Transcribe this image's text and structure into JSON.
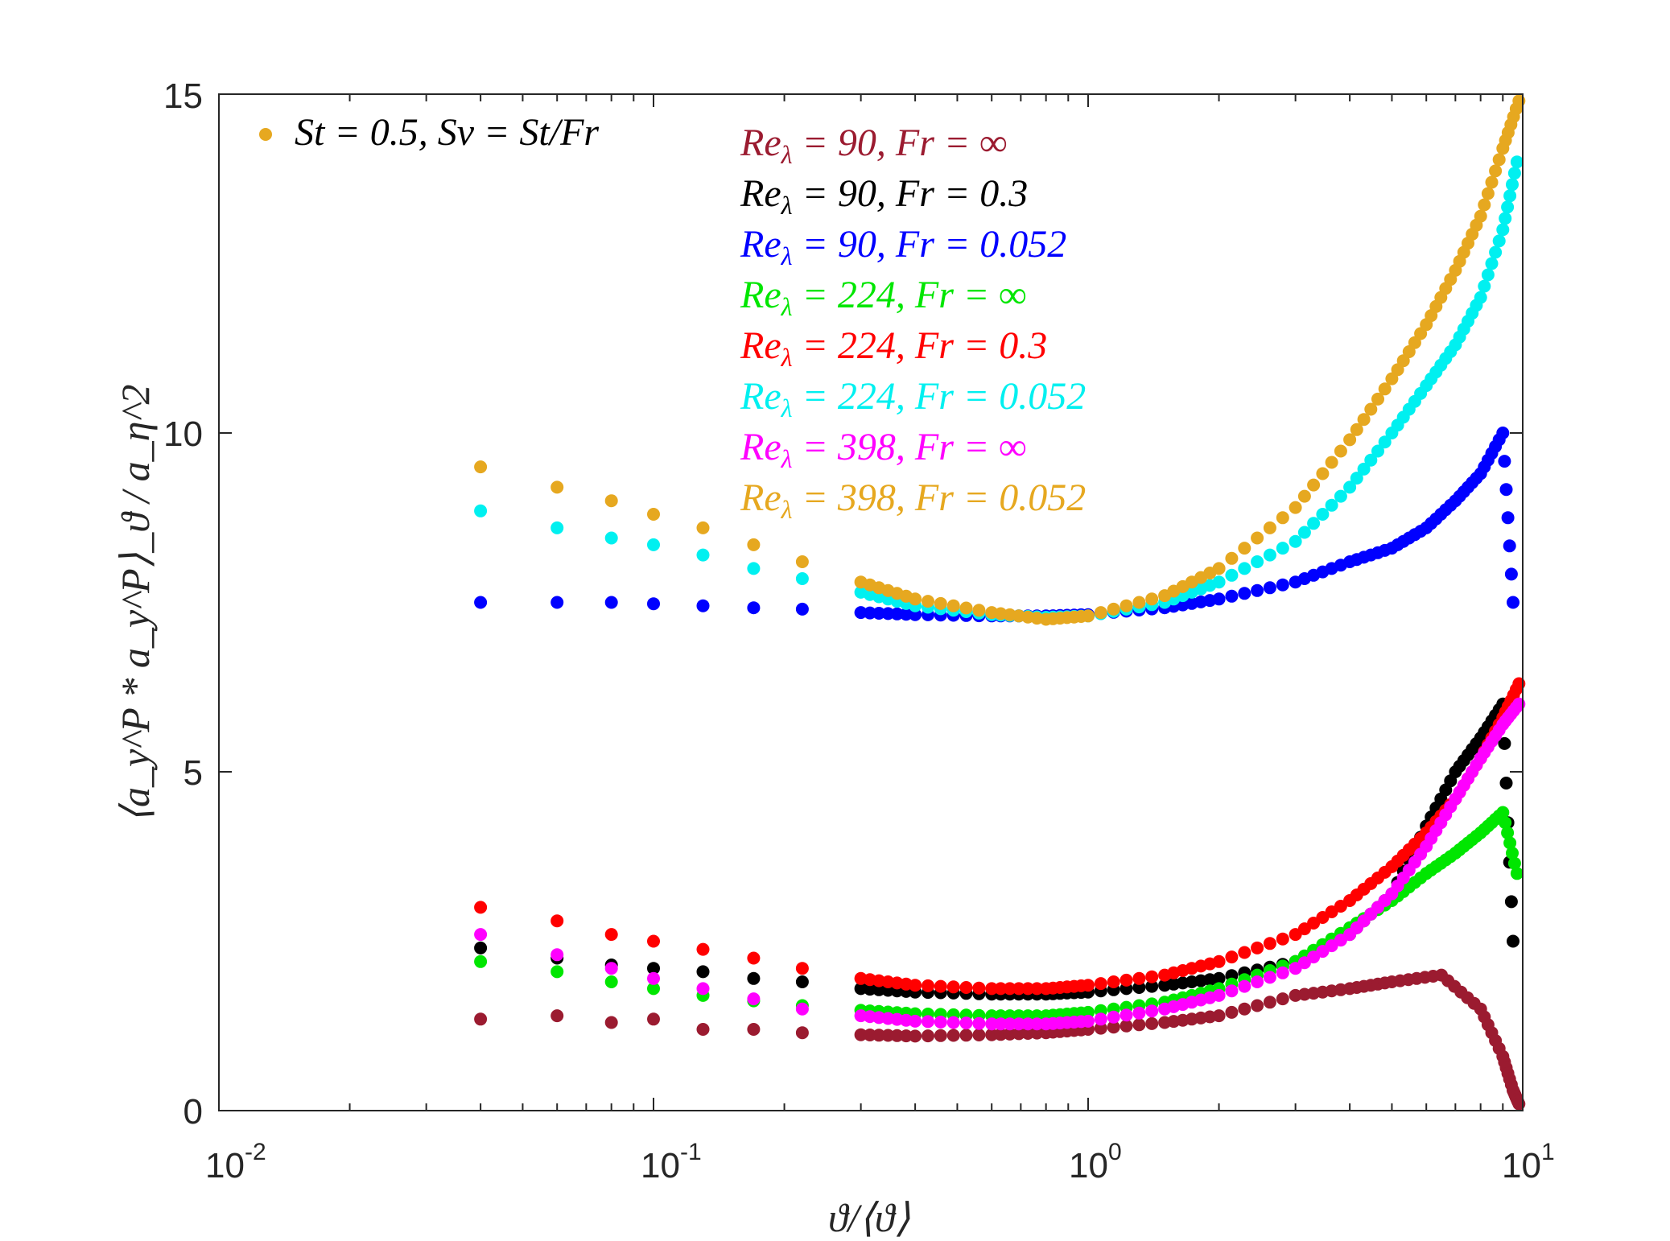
{
  "chart_data": {
    "type": "scatter",
    "xscale": "log",
    "xlim": [
      0.01,
      10
    ],
    "ylim": [
      0,
      15
    ],
    "grid": false,
    "xlabel": "ϑ/⟨ϑ⟩",
    "ylabel": "⟨a_y^P * a_y^P⟩_ϑ / a_η^2",
    "x_ticks": [
      {
        "base": "10",
        "exp": "-2"
      },
      {
        "base": "10",
        "exp": "-1"
      },
      {
        "base": "10",
        "exp": "0"
      },
      {
        "base": "10",
        "exp": "1"
      }
    ],
    "y_ticks": [
      "0",
      "5",
      "10",
      "15"
    ],
    "annotation": {
      "text": "St = 0.5, Sv = St/Fr",
      "color": "#E6A820",
      "position": "top-left"
    },
    "legend_position": "top-center",
    "series": [
      {
        "name": "Re_λ = 90, Fr = ∞",
        "label_parts": [
          "Re",
          "λ",
          " = 90, Fr = ∞"
        ],
        "color": "#9B1B30",
        "points": [
          [
            0.04,
            1.35
          ],
          [
            0.06,
            1.4
          ],
          [
            0.08,
            1.3
          ],
          [
            0.1,
            1.35
          ],
          [
            0.13,
            1.2
          ],
          [
            0.17,
            1.2
          ],
          [
            0.22,
            1.15
          ],
          [
            0.3,
            1.12
          ],
          [
            0.4,
            1.1
          ],
          [
            0.6,
            1.12
          ],
          [
            0.8,
            1.15
          ],
          [
            1.0,
            1.2
          ],
          [
            1.5,
            1.3
          ],
          [
            2.0,
            1.4
          ],
          [
            3.0,
            1.7
          ],
          [
            4.0,
            1.8
          ],
          [
            5.0,
            1.9
          ],
          [
            6.5,
            2.0
          ],
          [
            8.0,
            1.5
          ],
          [
            9.0,
            0.8
          ],
          [
            9.5,
            0.3
          ],
          [
            9.8,
            0.1
          ]
        ]
      },
      {
        "name": "Re_λ = 90, Fr = 0.3",
        "label_parts": [
          "Re",
          "λ",
          " = 90, Fr = 0.3"
        ],
        "color": "#000000",
        "points": [
          [
            0.04,
            2.4
          ],
          [
            0.06,
            2.25
          ],
          [
            0.08,
            2.15
          ],
          [
            0.1,
            2.1
          ],
          [
            0.13,
            2.05
          ],
          [
            0.17,
            1.95
          ],
          [
            0.22,
            1.9
          ],
          [
            0.3,
            1.8
          ],
          [
            0.4,
            1.75
          ],
          [
            0.6,
            1.72
          ],
          [
            0.8,
            1.72
          ],
          [
            1.0,
            1.75
          ],
          [
            1.5,
            1.85
          ],
          [
            2.0,
            1.95
          ],
          [
            3.0,
            2.2
          ],
          [
            4.0,
            2.6
          ],
          [
            5.0,
            3.2
          ],
          [
            6.0,
            4.2
          ],
          [
            7.0,
            5.0
          ],
          [
            8.0,
            5.5
          ],
          [
            9.0,
            6.0
          ],
          [
            9.5,
            2.5
          ]
        ]
      },
      {
        "name": "Re_λ = 90, Fr = 0.052",
        "label_parts": [
          "Re",
          "λ",
          " = 90, Fr = 0.052"
        ],
        "color": "#0000FF",
        "points": [
          [
            0.04,
            7.5
          ],
          [
            0.06,
            7.5
          ],
          [
            0.08,
            7.5
          ],
          [
            0.1,
            7.48
          ],
          [
            0.13,
            7.45
          ],
          [
            0.17,
            7.42
          ],
          [
            0.22,
            7.4
          ],
          [
            0.3,
            7.35
          ],
          [
            0.4,
            7.32
          ],
          [
            0.6,
            7.3
          ],
          [
            0.8,
            7.3
          ],
          [
            1.0,
            7.32
          ],
          [
            1.5,
            7.42
          ],
          [
            2.0,
            7.55
          ],
          [
            3.0,
            7.8
          ],
          [
            4.0,
            8.1
          ],
          [
            5.0,
            8.3
          ],
          [
            6.0,
            8.6
          ],
          [
            7.0,
            9.0
          ],
          [
            8.0,
            9.4
          ],
          [
            9.0,
            10.0
          ],
          [
            9.5,
            7.5
          ]
        ]
      },
      {
        "name": "Re_λ = 224, Fr = ∞",
        "label_parts": [
          "Re",
          "λ",
          " = 224, Fr = ∞"
        ],
        "color": "#00E600",
        "points": [
          [
            0.04,
            2.2
          ],
          [
            0.06,
            2.05
          ],
          [
            0.08,
            1.9
          ],
          [
            0.1,
            1.8
          ],
          [
            0.13,
            1.7
          ],
          [
            0.17,
            1.62
          ],
          [
            0.22,
            1.55
          ],
          [
            0.3,
            1.48
          ],
          [
            0.4,
            1.43
          ],
          [
            0.6,
            1.4
          ],
          [
            0.8,
            1.4
          ],
          [
            1.0,
            1.45
          ],
          [
            1.5,
            1.6
          ],
          [
            2.0,
            1.8
          ],
          [
            3.0,
            2.2
          ],
          [
            4.0,
            2.7
          ],
          [
            5.0,
            3.1
          ],
          [
            6.0,
            3.5
          ],
          [
            7.0,
            3.8
          ],
          [
            8.0,
            4.1
          ],
          [
            9.0,
            4.4
          ],
          [
            9.7,
            3.5
          ]
        ]
      },
      {
        "name": "Re_λ = 224, Fr = 0.3",
        "label_parts": [
          "Re",
          "λ",
          " = 224, Fr = 0.3"
        ],
        "color": "#FF0000",
        "points": [
          [
            0.04,
            3.0
          ],
          [
            0.06,
            2.8
          ],
          [
            0.08,
            2.6
          ],
          [
            0.1,
            2.5
          ],
          [
            0.13,
            2.38
          ],
          [
            0.17,
            2.25
          ],
          [
            0.22,
            2.1
          ],
          [
            0.3,
            1.95
          ],
          [
            0.4,
            1.85
          ],
          [
            0.6,
            1.8
          ],
          [
            0.8,
            1.8
          ],
          [
            1.0,
            1.85
          ],
          [
            1.5,
            2.0
          ],
          [
            2.0,
            2.2
          ],
          [
            3.0,
            2.6
          ],
          [
            4.0,
            3.1
          ],
          [
            5.0,
            3.6
          ],
          [
            6.0,
            4.1
          ],
          [
            7.0,
            4.6
          ],
          [
            8.0,
            5.2
          ],
          [
            9.0,
            5.8
          ],
          [
            9.8,
            6.3
          ]
        ]
      },
      {
        "name": "Re_λ = 224, Fr = 0.052",
        "label_parts": [
          "Re",
          "λ",
          " = 224, Fr = 0.052"
        ],
        "color": "#00F0F0",
        "points": [
          [
            0.04,
            8.85
          ],
          [
            0.06,
            8.6
          ],
          [
            0.08,
            8.45
          ],
          [
            0.1,
            8.35
          ],
          [
            0.13,
            8.2
          ],
          [
            0.17,
            8.0
          ],
          [
            0.22,
            7.85
          ],
          [
            0.3,
            7.65
          ],
          [
            0.4,
            7.45
          ],
          [
            0.6,
            7.32
          ],
          [
            0.8,
            7.28
          ],
          [
            1.0,
            7.3
          ],
          [
            1.5,
            7.5
          ],
          [
            2.0,
            7.8
          ],
          [
            3.0,
            8.4
          ],
          [
            4.0,
            9.2
          ],
          [
            5.0,
            10.0
          ],
          [
            6.0,
            10.7
          ],
          [
            7.0,
            11.3
          ],
          [
            8.0,
            12.0
          ],
          [
            9.0,
            13.0
          ],
          [
            9.7,
            14.0
          ]
        ]
      },
      {
        "name": "Re_λ = 398, Fr = ∞",
        "label_parts": [
          "Re",
          "λ",
          " = 398, Fr = ∞"
        ],
        "color": "#FF00FF",
        "points": [
          [
            0.04,
            2.6
          ],
          [
            0.06,
            2.3
          ],
          [
            0.08,
            2.1
          ],
          [
            0.1,
            1.95
          ],
          [
            0.13,
            1.8
          ],
          [
            0.17,
            1.65
          ],
          [
            0.22,
            1.5
          ],
          [
            0.3,
            1.4
          ],
          [
            0.4,
            1.32
          ],
          [
            0.6,
            1.28
          ],
          [
            0.8,
            1.28
          ],
          [
            1.0,
            1.32
          ],
          [
            1.5,
            1.5
          ],
          [
            2.0,
            1.7
          ],
          [
            3.0,
            2.1
          ],
          [
            4.0,
            2.6
          ],
          [
            5.0,
            3.2
          ],
          [
            6.0,
            3.9
          ],
          [
            7.0,
            4.6
          ],
          [
            8.0,
            5.2
          ],
          [
            9.0,
            5.7
          ],
          [
            9.8,
            6.0
          ]
        ]
      },
      {
        "name": "Re_λ = 398, Fr = 0.052",
        "label_parts": [
          "Re",
          "λ",
          " = 398, Fr = 0.052"
        ],
        "color": "#E6A820",
        "points": [
          [
            0.04,
            9.5
          ],
          [
            0.06,
            9.2
          ],
          [
            0.08,
            9.0
          ],
          [
            0.1,
            8.8
          ],
          [
            0.13,
            8.6
          ],
          [
            0.17,
            8.35
          ],
          [
            0.22,
            8.1
          ],
          [
            0.3,
            7.8
          ],
          [
            0.4,
            7.55
          ],
          [
            0.6,
            7.35
          ],
          [
            0.8,
            7.25
          ],
          [
            1.0,
            7.3
          ],
          [
            1.5,
            7.6
          ],
          [
            2.0,
            8.0
          ],
          [
            3.0,
            8.9
          ],
          [
            4.0,
            9.9
          ],
          [
            5.0,
            10.8
          ],
          [
            6.0,
            11.6
          ],
          [
            7.0,
            12.4
          ],
          [
            8.0,
            13.2
          ],
          [
            9.0,
            14.2
          ],
          [
            9.8,
            14.9
          ]
        ]
      }
    ]
  }
}
